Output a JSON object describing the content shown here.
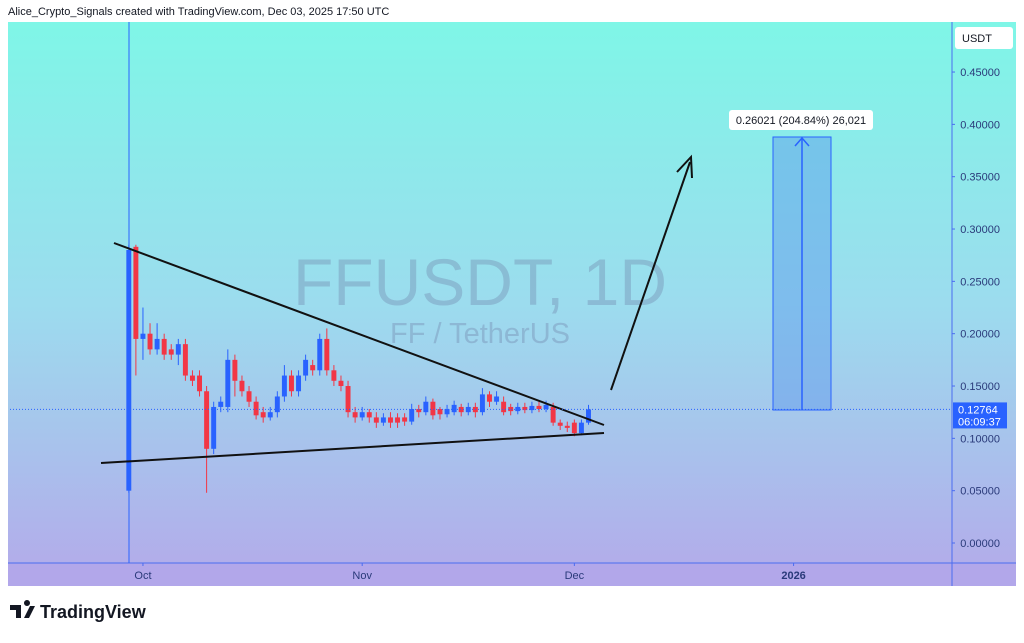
{
  "header": {
    "caption": "Alice_Crypto_Signals created with TradingView.com, Dec 03, 2025 17:50 UTC"
  },
  "footer": {
    "logo": "TradingView"
  },
  "chart_data": {
    "type": "candlestick",
    "watermark": {
      "symbol": "FFUSDT, 1D",
      "description": "FF / TetherUS"
    },
    "currency": "USDT",
    "x": [
      -2,
      -1,
      0,
      1,
      2,
      3,
      4,
      5,
      6,
      7,
      8,
      9,
      10,
      11,
      12,
      13,
      14,
      15,
      16,
      17,
      18,
      19,
      20,
      21,
      22,
      23,
      24,
      25,
      26,
      27,
      28,
      29,
      30,
      31,
      32,
      33,
      34,
      35,
      36,
      37,
      38,
      39,
      40,
      41,
      42,
      43,
      44,
      45,
      46,
      47,
      48,
      49,
      50,
      51,
      52,
      53,
      54,
      55,
      56,
      57,
      58,
      59,
      60,
      61,
      62,
      63
    ],
    "open": [
      0.05,
      0.283,
      0.195,
      0.2,
      0.185,
      0.195,
      0.185,
      0.18,
      0.19,
      0.16,
      0.16,
      0.145,
      0.09,
      0.13,
      0.13,
      0.175,
      0.155,
      0.145,
      0.135,
      0.125,
      0.12,
      0.125,
      0.14,
      0.16,
      0.145,
      0.16,
      0.17,
      0.165,
      0.195,
      0.165,
      0.155,
      0.15,
      0.125,
      0.12,
      0.125,
      0.12,
      0.115,
      0.12,
      0.12,
      0.12,
      0.116,
      0.128,
      0.125,
      0.135,
      0.128,
      0.123,
      0.125,
      0.13,
      0.125,
      0.13,
      0.125,
      0.142,
      0.135,
      0.135,
      0.13,
      0.126,
      0.13,
      0.127,
      0.131,
      0.128,
      0.13,
      0.115,
      0.112,
      0.115,
      0.105,
      0.115
    ],
    "high": [
      0.285,
      0.285,
      0.225,
      0.21,
      0.21,
      0.2,
      0.19,
      0.195,
      0.195,
      0.165,
      0.165,
      0.15,
      0.135,
      0.14,
      0.185,
      0.18,
      0.16,
      0.15,
      0.14,
      0.13,
      0.13,
      0.145,
      0.17,
      0.165,
      0.165,
      0.18,
      0.175,
      0.2,
      0.205,
      0.17,
      0.16,
      0.155,
      0.13,
      0.13,
      0.128,
      0.125,
      0.124,
      0.125,
      0.124,
      0.124,
      0.133,
      0.132,
      0.14,
      0.138,
      0.13,
      0.132,
      0.136,
      0.133,
      0.134,
      0.134,
      0.148,
      0.145,
      0.145,
      0.14,
      0.133,
      0.134,
      0.134,
      0.135,
      0.135,
      0.136,
      0.134,
      0.118,
      0.116,
      0.118,
      0.118,
      0.132
    ],
    "low": [
      0.048,
      0.16,
      0.175,
      0.18,
      0.18,
      0.175,
      0.175,
      0.17,
      0.155,
      0.15,
      0.14,
      0.048,
      0.085,
      0.125,
      0.125,
      0.14,
      0.14,
      0.13,
      0.118,
      0.115,
      0.117,
      0.12,
      0.135,
      0.14,
      0.14,
      0.155,
      0.16,
      0.16,
      0.16,
      0.15,
      0.145,
      0.12,
      0.115,
      0.117,
      0.115,
      0.11,
      0.112,
      0.11,
      0.11,
      0.112,
      0.113,
      0.12,
      0.122,
      0.118,
      0.118,
      0.12,
      0.122,
      0.121,
      0.122,
      0.12,
      0.122,
      0.13,
      0.132,
      0.122,
      0.122,
      0.123,
      0.124,
      0.124,
      0.125,
      0.125,
      0.112,
      0.108,
      0.106,
      0.102,
      0.103,
      0.113
    ],
    "close": [
      0.28,
      0.195,
      0.2,
      0.185,
      0.195,
      0.18,
      0.18,
      0.19,
      0.16,
      0.155,
      0.145,
      0.09,
      0.13,
      0.135,
      0.175,
      0.155,
      0.145,
      0.135,
      0.122,
      0.12,
      0.125,
      0.14,
      0.16,
      0.145,
      0.16,
      0.175,
      0.165,
      0.195,
      0.165,
      0.155,
      0.15,
      0.125,
      0.12,
      0.125,
      0.12,
      0.115,
      0.12,
      0.115,
      0.115,
      0.116,
      0.128,
      0.125,
      0.135,
      0.122,
      0.123,
      0.128,
      0.132,
      0.125,
      0.13,
      0.125,
      0.142,
      0.135,
      0.14,
      0.125,
      0.126,
      0.13,
      0.127,
      0.131,
      0.128,
      0.132,
      0.115,
      0.112,
      0.11,
      0.105,
      0.115,
      0.12764
    ],
    "up_color": "#2962ff",
    "down_color": "#f23645",
    "xlim": [
      -18.8,
      114.4
    ],
    "xticks": [
      {
        "value": 0,
        "label": "Oct"
      },
      {
        "value": 31,
        "label": "Nov"
      },
      {
        "value": 61,
        "label": "Dec"
      },
      {
        "value": 92,
        "label": "2026"
      }
    ],
    "ylim": [
      -0.0191,
      0.4978
    ],
    "yticks": [
      {
        "value": 0,
        "label": "0.00000"
      },
      {
        "value": 0.05,
        "label": "0.05000"
      },
      {
        "value": 0.1,
        "label": "0.10000"
      },
      {
        "value": 0.15,
        "label": "0.15000"
      },
      {
        "value": 0.2,
        "label": "0.20000"
      },
      {
        "value": 0.25,
        "label": "0.25000"
      },
      {
        "value": 0.3,
        "label": "0.30000"
      },
      {
        "value": 0.35,
        "label": "0.35000"
      },
      {
        "value": 0.4,
        "label": "0.40000"
      },
      {
        "value": 0.45,
        "label": "0.45000"
      }
    ],
    "grid": false,
    "last_price": 0.12764,
    "countdown": "06:09:37",
    "measure_label": "0.26021 (204.84%) 26,021"
  }
}
